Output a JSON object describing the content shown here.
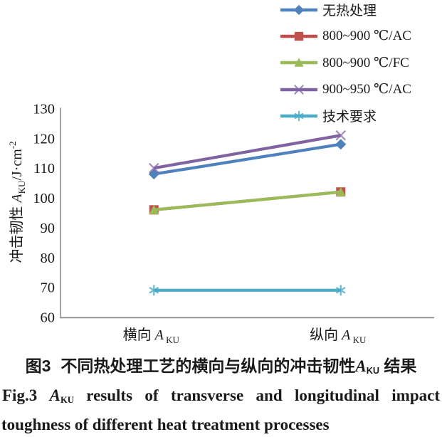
{
  "colors": {
    "axis": "#8f8f8f",
    "text": "#1a1a1a",
    "series_blue": "#4F81BD",
    "series_red": "#C0504D",
    "series_green": "#9BBB59",
    "series_purple": "#8064A2",
    "series_cyan": "#4BACC6"
  },
  "legend": {
    "items": [
      {
        "label": "无热处理",
        "marker": "diamond",
        "color": "#4F81BD"
      },
      {
        "label": "800~900 ℃/AC",
        "marker": "square",
        "color": "#C0504D"
      },
      {
        "label": "800~900 ℃/FC",
        "marker": "triangle",
        "color": "#9BBB59"
      },
      {
        "label": "900~950 ℃/AC",
        "marker": "x",
        "color": "#8064A2"
      },
      {
        "label": "技术要求",
        "marker": "asterisk",
        "color": "#4BACC6"
      }
    ]
  },
  "chart_data": {
    "type": "line",
    "title": "",
    "categories": [
      {
        "prefix": "横向 ",
        "symbol": "A",
        "sub": "KU"
      },
      {
        "prefix": "纵向 ",
        "symbol": "A",
        "sub": "KU"
      }
    ],
    "series": [
      {
        "name": "无热处理",
        "values": [
          108,
          118
        ],
        "color": "#4F81BD",
        "marker": "diamond"
      },
      {
        "name": "800~900 ℃/AC",
        "values": [
          96,
          102
        ],
        "color": "#C0504D",
        "marker": "square"
      },
      {
        "name": "800~900 ℃/FC",
        "values": [
          96,
          102
        ],
        "color": "#9BBB59",
        "marker": "triangle"
      },
      {
        "name": "900~950 ℃/AC",
        "values": [
          110,
          121
        ],
        "color": "#8064A2",
        "marker": "x"
      },
      {
        "name": "技术要求",
        "values": [
          69,
          69
        ],
        "color": "#4BACC6",
        "marker": "asterisk"
      }
    ],
    "ylabel": {
      "prefix": "冲击韧性 ",
      "symbol": "A",
      "sub": "KU",
      "unit": "/J·cm",
      "sup": "-2"
    },
    "ylim": [
      60,
      130
    ],
    "yticks": [
      130,
      120,
      110,
      100,
      90,
      80,
      70,
      60
    ],
    "grid": false,
    "legend_position": "top-right"
  },
  "caption": {
    "cn": {
      "fig": "图3",
      "pre": "不同热处理工艺的横向与纵向的冲击韧性",
      "symbol": "A",
      "sub": "KU",
      "post": " 结果"
    },
    "en_line1": {
      "fig": "Fig.3",
      "symbol": "A",
      "sub": "KU",
      "rest_words": "results of transverse and longitudinal impact"
    },
    "en_line2": "toughness of different heat treatment processes"
  }
}
